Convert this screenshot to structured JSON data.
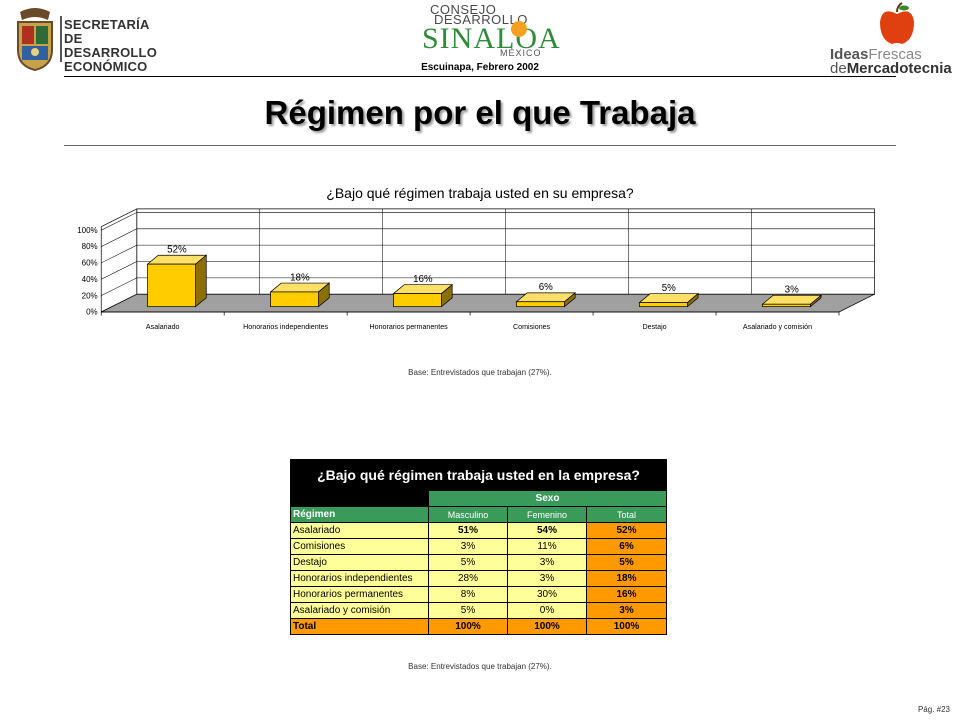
{
  "header": {
    "secretaria_lines": [
      "SECRETARÍA",
      "DE DESARROLLO",
      "ECONÓMICO"
    ],
    "consejo_top": "CONSEJO",
    "consejo_mid": "DESARROLLO",
    "sinaloa": "SINALOA",
    "mexico": "MÉXICO",
    "date": "Escuinapa, Febrero 2002",
    "brand_line1_bold": "Ideas",
    "brand_line1_light": "Frescas",
    "brand_line2_light": "de",
    "brand_line2_bold": "Mercadotecnia",
    "accent_green": "#2e8b3a",
    "accent_red": "#e04010"
  },
  "page_title": "Régimen por el que Trabaja",
  "chart_data": {
    "type": "bar",
    "title": "¿Bajo qué régimen trabaja usted en su empresa?",
    "categories": [
      "Asalariado",
      "Honorarios independientes",
      "Honorarios permanentes",
      "Comisiones",
      "Destajo",
      "Asalariado y comisión"
    ],
    "values": [
      52,
      18,
      16,
      6,
      5,
      3
    ],
    "value_labels": [
      "52%",
      "18%",
      "16%",
      "6%",
      "5%",
      "3%"
    ],
    "y_ticks": [
      "0%",
      "20%",
      "40%",
      "60%",
      "80%",
      "100%"
    ],
    "ylim": [
      0,
      100
    ],
    "bar_color": "#ffcc00",
    "floor_color": "#a0a0a0",
    "three_d": true
  },
  "chart_base_note": "Base:   Entrevistados que trabajan (27%).",
  "table": {
    "title": "¿Bajo qué régimen trabaja usted en la empresa?",
    "group_header": "Sexo",
    "row_header": "Régimen",
    "columns": [
      "Masculino",
      "Femenino",
      "Total"
    ],
    "rows": [
      {
        "label": "Asalariado",
        "values": [
          "51%",
          "54%",
          "52%"
        ]
      },
      {
        "label": "Comisiones",
        "values": [
          "3%",
          "11%",
          "6%"
        ]
      },
      {
        "label": "Destajo",
        "values": [
          "5%",
          "3%",
          "5%"
        ]
      },
      {
        "label": "Honorarios independientes",
        "values": [
          "28%",
          "3%",
          "18%"
        ]
      },
      {
        "label": "Honorarios permanentes",
        "values": [
          "8%",
          "30%",
          "16%"
        ]
      },
      {
        "label": "Asalariado y comisión",
        "values": [
          "5%",
          "0%",
          "3%"
        ]
      }
    ],
    "total_row": {
      "label": "Total",
      "values": [
        "100%",
        "100%",
        "100%"
      ]
    }
  },
  "table_base_note": "Base:   Entrevistados que trabajan (27%).",
  "page_number": "Pág. #23"
}
